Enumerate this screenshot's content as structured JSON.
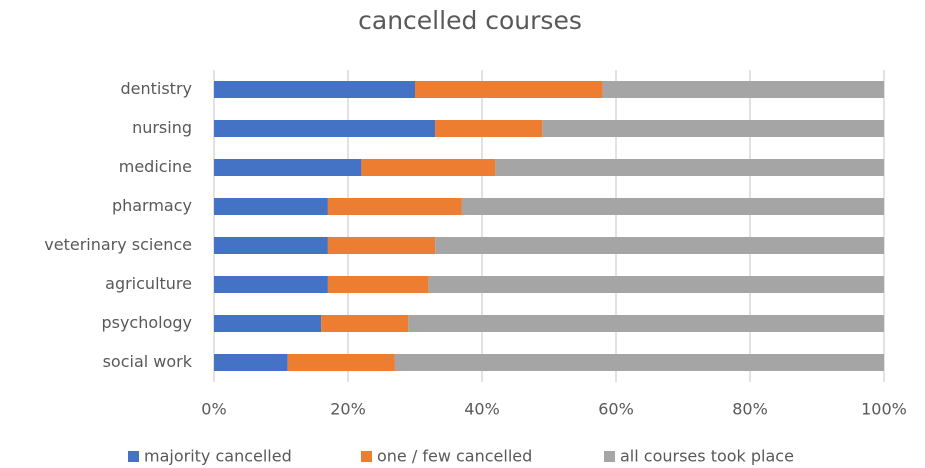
{
  "chart_data": {
    "type": "stacked_barh",
    "title": "cancelled courses",
    "categories": [
      "dentistry",
      "nursing",
      "medicine",
      "pharmacy",
      "veterinary science",
      "agriculture",
      "psychology",
      "social work"
    ],
    "series": [
      {
        "name": "majority cancelled",
        "color": "#4472c4",
        "values": [
          30,
          33,
          22,
          17,
          17,
          17,
          16,
          11
        ]
      },
      {
        "name": "one / few cancelled",
        "color": "#ed7d31",
        "values": [
          28,
          16,
          20,
          20,
          16,
          15,
          13,
          16
        ]
      },
      {
        "name": "all courses took place",
        "color": "#a5a5a5",
        "values": [
          42,
          51,
          58,
          63,
          67,
          68,
          71,
          73
        ]
      }
    ],
    "xlim": [
      0,
      100
    ],
    "xticks": [
      {
        "value": 0,
        "label": "0%"
      },
      {
        "value": 20,
        "label": "20%"
      },
      {
        "value": 40,
        "label": "40%"
      },
      {
        "value": 60,
        "label": "60%"
      },
      {
        "value": 80,
        "label": "80%"
      },
      {
        "value": 100,
        "label": "100%"
      }
    ],
    "grid": true,
    "legend": "bottom"
  }
}
